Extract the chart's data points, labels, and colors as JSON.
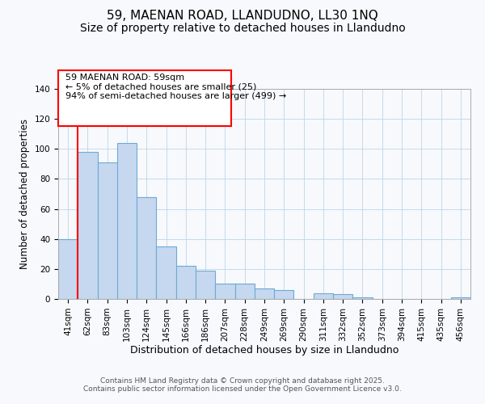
{
  "title": "59, MAENAN ROAD, LLANDUDNO, LL30 1NQ",
  "subtitle": "Size of property relative to detached houses in Llandudno",
  "xlabel": "Distribution of detached houses by size in Llandudno",
  "ylabel": "Number of detached properties",
  "bar_labels": [
    "41sqm",
    "62sqm",
    "83sqm",
    "103sqm",
    "124sqm",
    "145sqm",
    "166sqm",
    "186sqm",
    "207sqm",
    "228sqm",
    "249sqm",
    "269sqm",
    "290sqm",
    "311sqm",
    "332sqm",
    "352sqm",
    "373sqm",
    "394sqm",
    "415sqm",
    "435sqm",
    "456sqm"
  ],
  "bar_values": [
    40,
    98,
    91,
    104,
    68,
    35,
    22,
    19,
    10,
    10,
    7,
    6,
    0,
    4,
    3,
    1,
    0,
    0,
    0,
    0,
    1
  ],
  "bar_color": "#c5d8f0",
  "bar_edge_color": "#6fa8d4",
  "ylim": [
    0,
    140
  ],
  "yticks": [
    0,
    20,
    40,
    60,
    80,
    100,
    120,
    140
  ],
  "annotation_title": "59 MAENAN ROAD: 59sqm",
  "annotation_line1": "← 5% of detached houses are smaller (25)",
  "annotation_line2": "94% of semi-detached houses are larger (499) →",
  "red_line_bar_index": 1,
  "footer_line1": "Contains HM Land Registry data © Crown copyright and database right 2025.",
  "footer_line2": "Contains public sector information licensed under the Open Government Licence v3.0.",
  "background_color": "#f7f9fc",
  "title_fontsize": 11,
  "subtitle_fontsize": 10,
  "xlabel_fontsize": 9,
  "ylabel_fontsize": 8.5,
  "tick_fontsize": 7.5,
  "footer_fontsize": 6.5,
  "annot_fontsize": 8
}
